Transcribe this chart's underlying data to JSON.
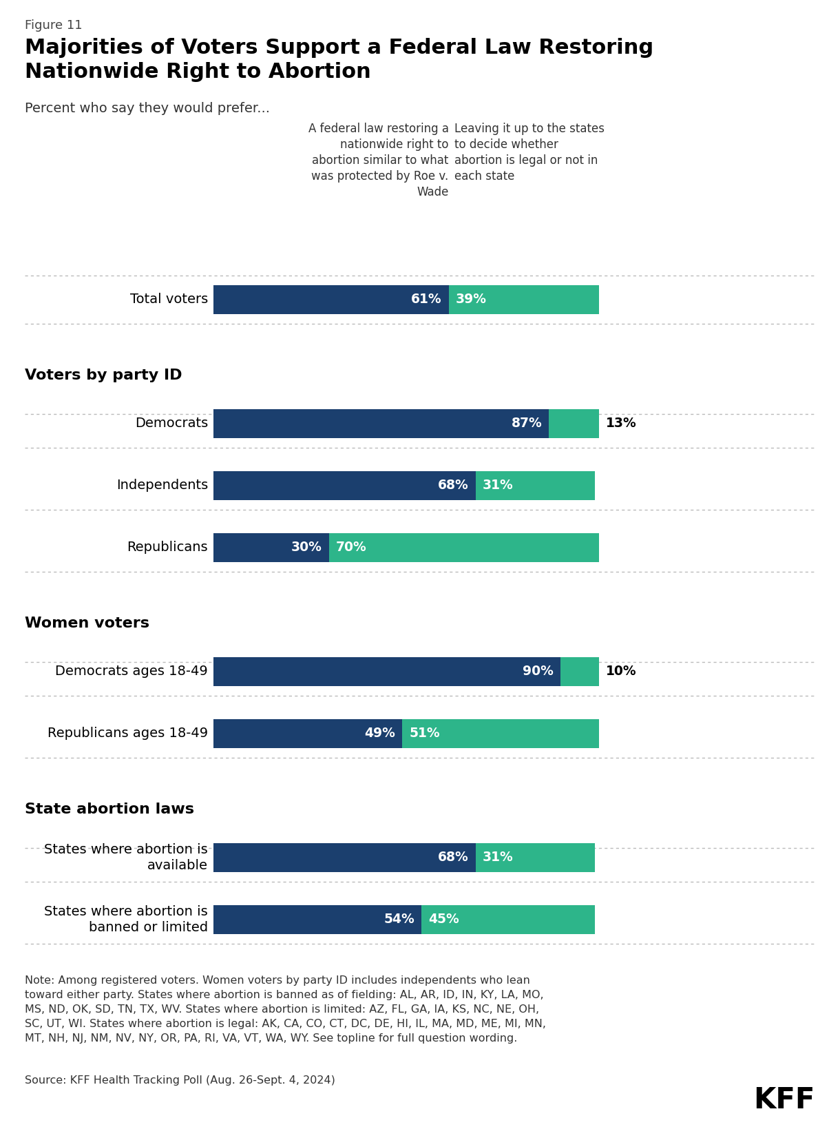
{
  "figure_label": "Figure 11",
  "title": "Majorities of Voters Support a Federal Law Restoring\nNationwide Right to Abortion",
  "subtitle": "Percent who say they would prefer...",
  "col1_header": "A federal law restoring a\nnationwide right to\nabortion similar to what\nwas protected by Roe v.\nWade",
  "col2_header": "Leaving it up to the states\nto decide whether\nabortion is legal or not in\neach state",
  "items": [
    {
      "type": "bar",
      "label": "Total voters",
      "blue": 61,
      "green": 39
    },
    {
      "type": "section",
      "label": "Voters by party ID"
    },
    {
      "type": "bar",
      "label": "Democrats",
      "blue": 87,
      "green": 13
    },
    {
      "type": "bar",
      "label": "Independents",
      "blue": 68,
      "green": 31
    },
    {
      "type": "bar",
      "label": "Republicans",
      "blue": 30,
      "green": 70
    },
    {
      "type": "section",
      "label": "Women voters"
    },
    {
      "type": "bar",
      "label": "Democrats ages 18-49",
      "blue": 90,
      "green": 10
    },
    {
      "type": "bar",
      "label": "Republicans ages 18-49",
      "blue": 49,
      "green": 51
    },
    {
      "type": "section",
      "label": "State abortion laws"
    },
    {
      "type": "bar",
      "label": "States where abortion is\navailable",
      "blue": 68,
      "green": 31
    },
    {
      "type": "bar",
      "label": "States where abortion is\nbanned or limited",
      "blue": 54,
      "green": 45
    }
  ],
  "blue_color": "#1b3f6e",
  "green_color": "#2db58a",
  "note": "Note: Among registered voters. Women voters by party ID includes independents who lean\ntoward either party. States where abortion is banned as of fielding: AL, AR, ID, IN, KY, LA, MO,\nMS, ND, OK, SD, TN, TX, WV. States where abortion is limited: AZ, FL, GA, IA, KS, NC, NE, OH,\nSC, UT, WI. States where abortion is legal: AK, CA, CO, CT, DC, DE, HI, IL, MA, MD, ME, MI, MN,\nMT, NH, NJ, NM, NV, NY, OR, PA, RI, VA, VT, WA, WY. See topline for full question wording.",
  "source": "Source: KFF Health Tracking Poll (Aug. 26-Sept. 4, 2024)"
}
